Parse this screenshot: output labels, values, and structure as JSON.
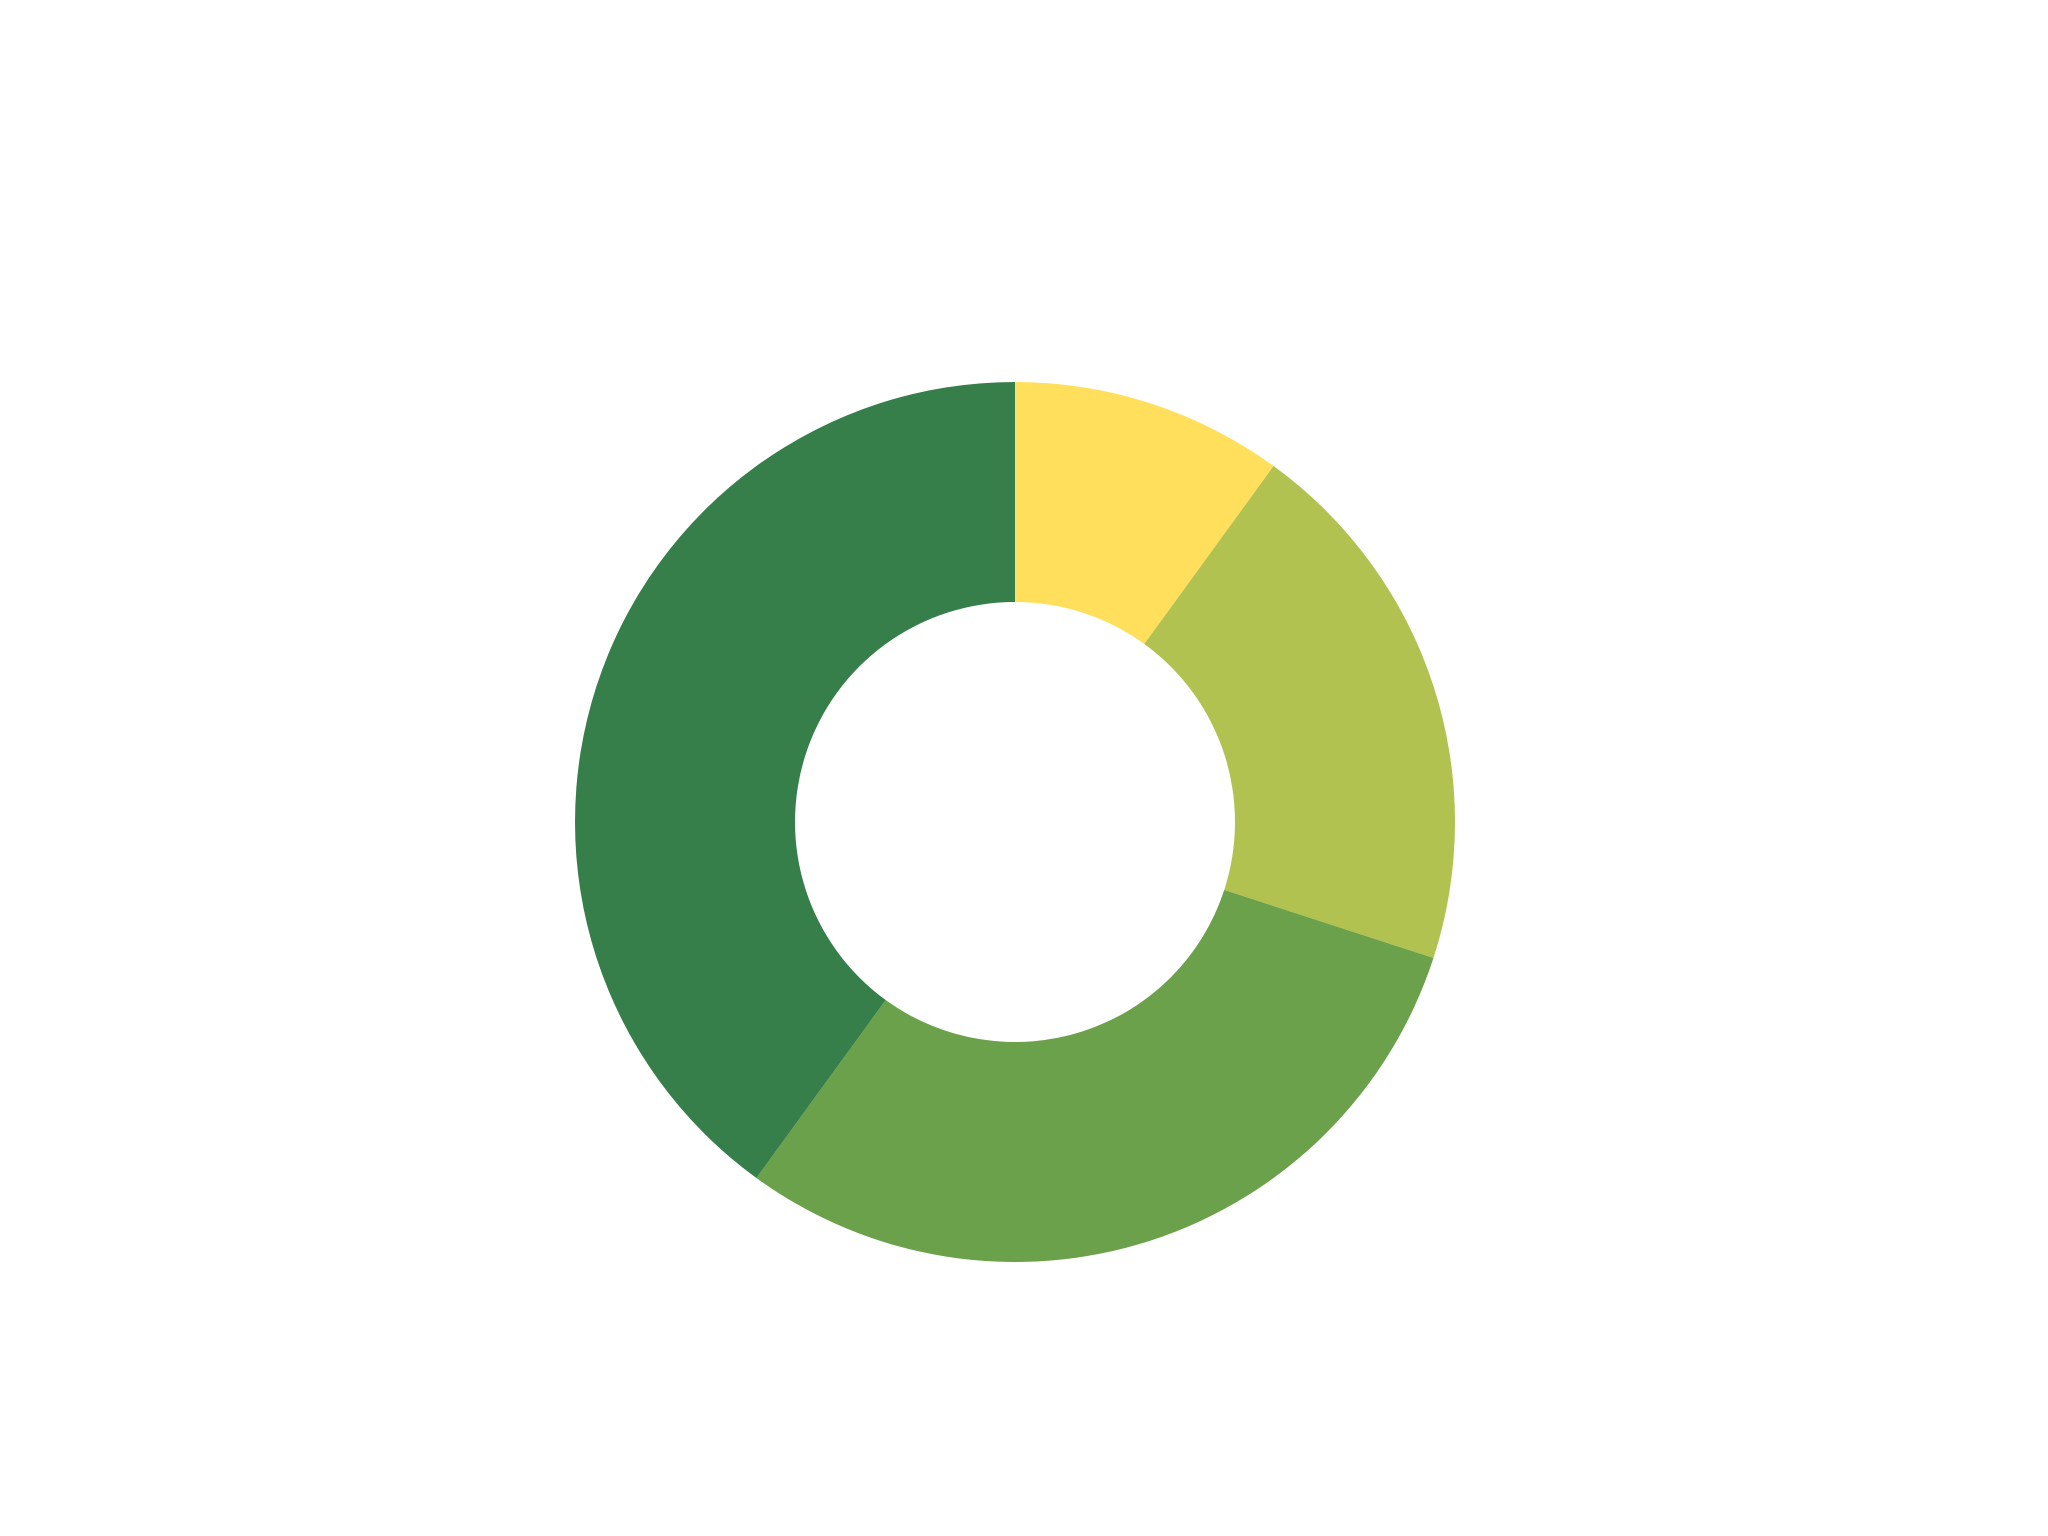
{
  "chart_data": {
    "type": "pie",
    "variant": "donut",
    "title": "",
    "start_angle_deg": 0,
    "direction": "clockwise",
    "slices": [
      {
        "value": 10,
        "color": "#FFDF5C"
      },
      {
        "value": 20,
        "color": "#B1C250"
      },
      {
        "value": 30,
        "color": "#6CA14C"
      },
      {
        "value": 40,
        "color": "#367F4B"
      }
    ]
  }
}
